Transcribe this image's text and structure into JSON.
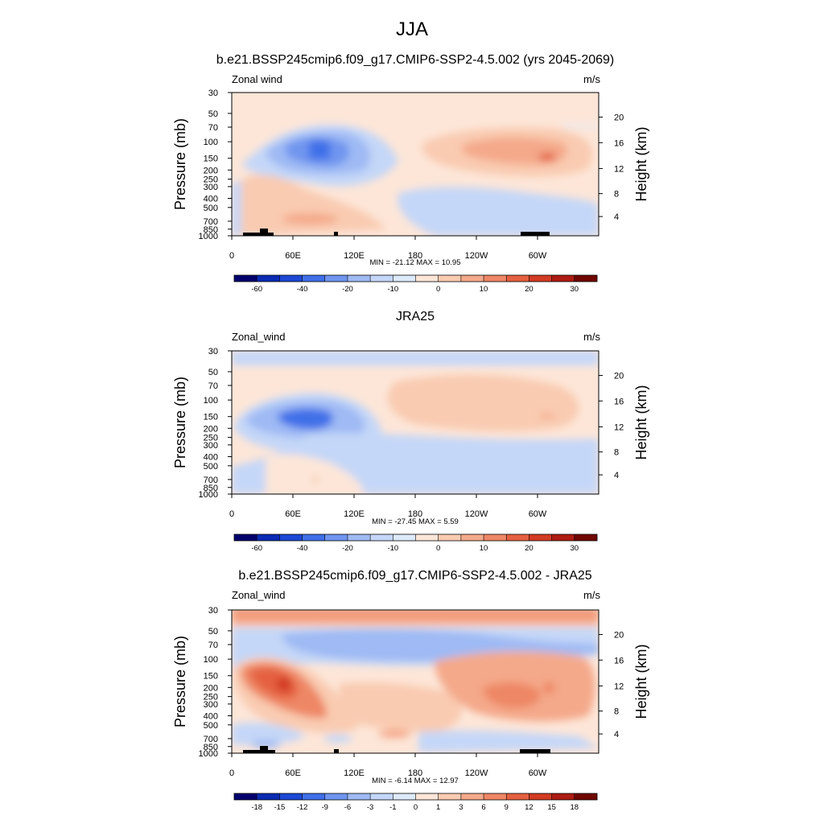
{
  "figure_title": "JJA",
  "chart_data": [
    {
      "type": "heatmap",
      "title": "b.e21.BSSP245cmip6.f09_g17.CMIP6-SSP2-4.5.002 (yrs 2045-2069)",
      "left_label": "Zonal wind",
      "right_label": "m/s",
      "ylabel": "Pressure (mb)",
      "y2label": "Height (km)",
      "y_ticks": [
        "30",
        "50",
        "70",
        "100",
        "150",
        "200",
        "250",
        "300",
        "400",
        "500",
        "700",
        "850",
        "1000"
      ],
      "y2_ticks": [
        "20",
        "16",
        "12",
        "8",
        "4"
      ],
      "x_ticks": [
        "0",
        "60E",
        "120E",
        "180",
        "120W",
        "60W"
      ],
      "stats": "MIN = -21.12  MAX =  10.95",
      "colorbar_labels": [
        "-60",
        "-40",
        "-20",
        "-10",
        "0",
        "10",
        "20",
        "30"
      ]
    },
    {
      "type": "heatmap",
      "title": "JRA25",
      "left_label": "Zonal_wind",
      "right_label": "m/s",
      "ylabel": "Pressure (mb)",
      "y2label": "Height (km)",
      "y_ticks": [
        "30",
        "50",
        "70",
        "100",
        "150",
        "200",
        "250",
        "300",
        "400",
        "500",
        "700",
        "850",
        "1000"
      ],
      "y2_ticks": [
        "20",
        "16",
        "12",
        "8",
        "4"
      ],
      "x_ticks": [
        "0",
        "60E",
        "120E",
        "180",
        "120W",
        "60W"
      ],
      "stats": "MIN = -27.45  MAX =   5.59",
      "colorbar_labels": [
        "-60",
        "-40",
        "-20",
        "-10",
        "0",
        "10",
        "20",
        "30"
      ]
    },
    {
      "type": "heatmap",
      "title": "b.e21.BSSP245cmip6.f09_g17.CMIP6-SSP2-4.5.002 - JRA25",
      "left_label": "Zonal_wind",
      "right_label": "m/s",
      "ylabel": "Pressure (mb)",
      "y2label": "Height (km)",
      "y_ticks": [
        "30",
        "50",
        "70",
        "100",
        "150",
        "200",
        "250",
        "300",
        "400",
        "500",
        "700",
        "850",
        "1000"
      ],
      "y2_ticks": [
        "20",
        "16",
        "12",
        "8",
        "4"
      ],
      "x_ticks": [
        "0",
        "60E",
        "120E",
        "180",
        "120W",
        "60W"
      ],
      "stats": "MIN =  -6.14  MAX =  12.97",
      "colorbar_labels": [
        "-18",
        "-15",
        "-12",
        "-9",
        "-6",
        "-3",
        "-1",
        "0",
        "1",
        "3",
        "6",
        "9",
        "12",
        "15",
        "18"
      ]
    }
  ],
  "colors": {
    "scale": [
      "#03006e",
      "#0a2bb3",
      "#1c48d4",
      "#3f6fe8",
      "#6f95ef",
      "#9fbaf4",
      "#c4d7f8",
      "#ddeafa",
      "#fde6d8",
      "#f9cbb1",
      "#f4a98a",
      "#ee8765",
      "#e4603f",
      "#d33b23",
      "#ad1b11",
      "#700600"
    ]
  }
}
